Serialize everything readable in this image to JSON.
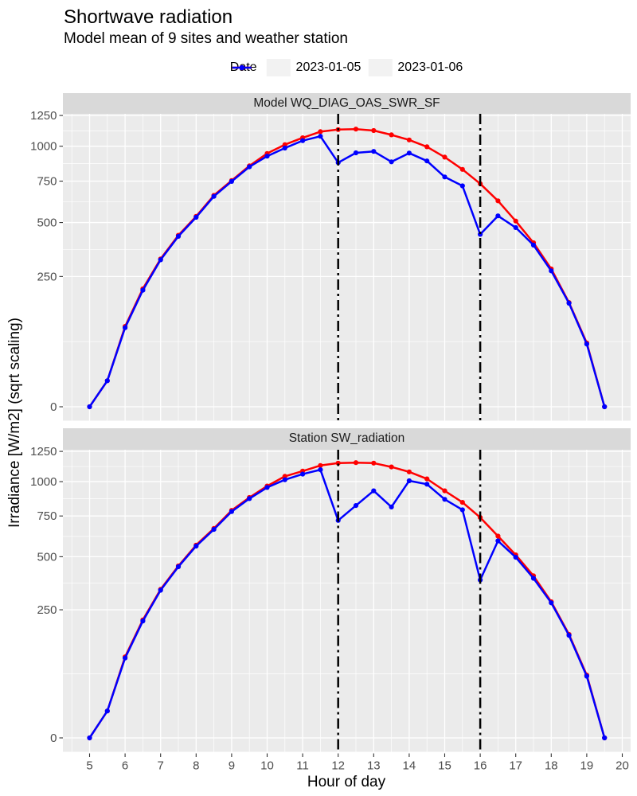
{
  "header": {
    "title": "Shortwave radiation",
    "subtitle": "Model mean of 9 sites and weather station"
  },
  "legend": {
    "title": "Date",
    "items": [
      {
        "label": "2023-01-05",
        "color": "#FF0000"
      },
      {
        "label": "2023-01-06",
        "color": "#0000FF"
      }
    ]
  },
  "axes": {
    "xlabel": "Hour of day",
    "ylabel": "Irradiance [W/m2] (sqrt scaling)"
  },
  "chart_data": {
    "type": "line",
    "title": "Shortwave radiation",
    "subtitle": "Model mean of 9 sites and weather station",
    "xlabel": "Hour of day",
    "ylabel": "Irradiance [W/m2] (sqrt scaling)",
    "y_scale": "sqrt",
    "grid": true,
    "legend_position": "top",
    "x_ticks": [
      5,
      6,
      7,
      8,
      9,
      10,
      11,
      12,
      13,
      14,
      15,
      16,
      17,
      18,
      19,
      20
    ],
    "y_ticks": [
      0,
      250,
      500,
      750,
      1000,
      1250
    ],
    "ylim": [
      0,
      1285
    ],
    "vline_x": [
      12,
      16
    ],
    "vline_style": "dash-dot",
    "x": [
      5,
      5.5,
      6,
      6.5,
      7,
      7.5,
      8,
      8.5,
      9,
      9.5,
      10,
      10.5,
      11,
      11.5,
      12,
      12.5,
      13,
      13.5,
      14,
      14.5,
      15,
      15.5,
      16,
      16.5,
      17,
      17.5,
      18,
      18.5,
      19,
      19.5
    ],
    "panels": [
      {
        "label": "Model WQ_DIAG_OAS_SWR_SF",
        "series": [
          {
            "name": "2023-01-05",
            "values": [
              0,
              10,
              95,
              205,
              322,
              433,
              534,
              658,
              754,
              855,
              945,
              1012,
              1066,
              1115,
              1132,
              1136,
              1124,
              1089,
              1049,
              996,
              918,
              830,
              733,
              625,
              508,
              396,
              280,
              160,
              60,
              0
            ]
          },
          {
            "name": "2023-01-06",
            "values": [
              0,
              10,
              92,
              200,
              318,
              428,
              529,
              652,
              748,
              848,
              925,
              986,
              1043,
              1078,
              878,
              950,
              961,
              884,
              948,
              890,
              778,
              719,
              438,
              537,
              473,
              385,
              272,
              158,
              58,
              0
            ]
          }
        ]
      },
      {
        "label": "Station SW_radiation",
        "series": [
          {
            "name": "2023-01-05",
            "values": [
              0,
              11,
              100,
              212,
              336,
              450,
              566,
              668,
              788,
              880,
              966,
              1042,
              1084,
              1130,
              1150,
              1154,
              1150,
              1118,
              1078,
              1022,
              930,
              845,
              740,
              620,
              510,
              400,
              282,
              163,
              60,
              0
            ]
          },
          {
            "name": "2023-01-06",
            "values": [
              0,
              11,
              97,
              208,
              332,
              446,
              560,
              662,
              780,
              872,
              955,
              1015,
              1060,
              1095,
              720,
              822,
              930,
              812,
              1007,
              980,
              867,
              792,
              380,
              591,
              497,
              388,
              278,
              160,
              58,
              0
            ]
          }
        ]
      }
    ],
    "colors": {
      "series": {
        "2023-01-05": "#FF0000",
        "2023-01-06": "#0000FF"
      },
      "panel_bg": "#EBEBEB",
      "strip_bg": "#D9D9D9",
      "grid": "#FFFFFF",
      "axis_text": "#4D4D4D",
      "tick_mark": "#333333",
      "vline": "#000000",
      "legend_key_bg": "#F2F2F2"
    }
  }
}
